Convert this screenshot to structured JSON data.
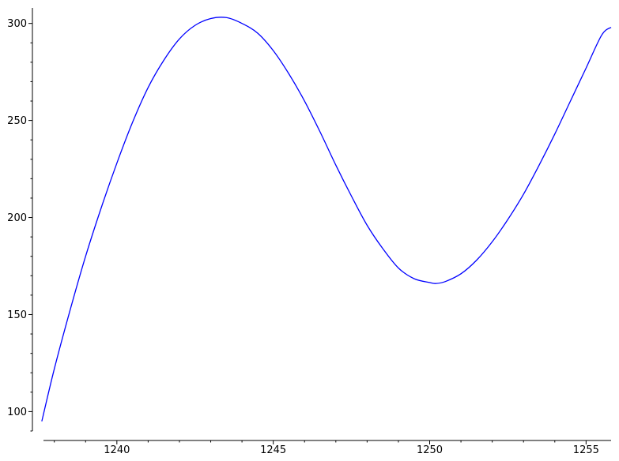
{
  "chart_data": {
    "type": "line",
    "title": "",
    "xlabel": "",
    "ylabel": "",
    "xlim": [
      1237.3,
      1255.8
    ],
    "ylim": [
      90,
      308
    ],
    "grid": false,
    "legend": "none",
    "x_ticks": [
      {
        "value": 1240,
        "label": "1240"
      },
      {
        "value": 1245,
        "label": "1245"
      },
      {
        "value": 1250,
        "label": "1250"
      },
      {
        "value": 1255,
        "label": "1255"
      }
    ],
    "y_ticks": [
      {
        "value": 100,
        "label": "100"
      },
      {
        "value": 150,
        "label": "150"
      },
      {
        "value": 200,
        "label": "200"
      },
      {
        "value": 250,
        "label": "250"
      },
      {
        "value": 300,
        "label": "300"
      }
    ],
    "x_minor_step": 1,
    "y_minor_step": 10,
    "series": [
      {
        "color": "#0000ff",
        "x": [
          1237.6,
          1238.0,
          1238.5,
          1239.0,
          1239.5,
          1240.0,
          1240.5,
          1241.0,
          1241.5,
          1242.0,
          1242.5,
          1243.0,
          1243.5,
          1244.0,
          1244.5,
          1245.0,
          1245.5,
          1246.0,
          1246.5,
          1247.0,
          1247.5,
          1248.0,
          1248.5,
          1249.0,
          1249.5,
          1250.0,
          1250.2,
          1250.5,
          1251.0,
          1251.5,
          1252.0,
          1252.5,
          1253.0,
          1253.5,
          1254.0,
          1254.5,
          1255.0,
          1255.5,
          1255.8
        ],
        "y": [
          95,
          122,
          152,
          180,
          205,
          228,
          249,
          267,
          281,
          292,
          299,
          302.5,
          303,
          300,
          295,
          286,
          274,
          260,
          244,
          227,
          211,
          196,
          184,
          174,
          168.5,
          166.5,
          166,
          167,
          171,
          178,
          187.5,
          199,
          212,
          227,
          243,
          260,
          277,
          294,
          298
        ]
      }
    ]
  }
}
